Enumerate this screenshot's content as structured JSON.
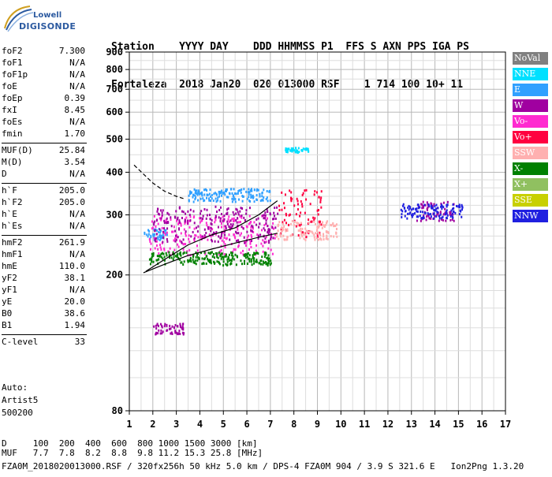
{
  "logo": {
    "brand": "Lowell",
    "name": "DIGISONDE"
  },
  "header": {
    "labels": "Station    YYYY DAY    DDD HHMMSS P1  FFS S AXN PPS IGA PS",
    "values": "Fortaleza  2018 Jan20  020 013000 RSF    1 714 100 10+ 11"
  },
  "params": [
    {
      "k": "foF2",
      "v": "7.300"
    },
    {
      "k": "foF1",
      "v": "N/A"
    },
    {
      "k": "foF1p",
      "v": "N/A"
    },
    {
      "k": "foE",
      "v": "N/A"
    },
    {
      "k": "foEp",
      "v": "0.39"
    },
    {
      "k": "fxI",
      "v": "8.45"
    },
    {
      "k": "foEs",
      "v": "N/A"
    },
    {
      "k": "fmin",
      "v": "1.70"
    },
    {
      "k": "MUF(D)",
      "v": "25.84"
    },
    {
      "k": "M(D)",
      "v": "3.54"
    },
    {
      "k": "D",
      "v": "N/A"
    },
    {
      "k": "h`F",
      "v": "205.0"
    },
    {
      "k": "h`F2",
      "v": "205.0"
    },
    {
      "k": "h`E",
      "v": "N/A"
    },
    {
      "k": "h`Es",
      "v": "N/A"
    },
    {
      "k": "hmF2",
      "v": "261.9"
    },
    {
      "k": "hmF1",
      "v": "N/A"
    },
    {
      "k": "hmE",
      "v": "110.0"
    },
    {
      "k": "yF2",
      "v": "38.1"
    },
    {
      "k": "yF1",
      "v": "N/A"
    },
    {
      "k": "yE",
      "v": "20.0"
    },
    {
      "k": "B0",
      "v": "38.6"
    },
    {
      "k": "B1",
      "v": "1.94"
    },
    {
      "k": "C-level",
      "v": "33"
    }
  ],
  "auto": {
    "line1": "Auto:",
    "line2": "Artist5",
    "line3": "500200"
  },
  "legend": [
    {
      "label": "NoVal",
      "color": "#808080"
    },
    {
      "label": "NNE",
      "color": "#00e0ff"
    },
    {
      "label": "E",
      "color": "#30a0ff"
    },
    {
      "label": "W",
      "color": "#a000a0"
    },
    {
      "label": "Vo-",
      "color": "#ff2ad0"
    },
    {
      "label": "Vo+",
      "color": "#ff0040"
    },
    {
      "label": "SSW",
      "color": "#ffb0b0"
    },
    {
      "label": "X-",
      "color": "#008000"
    },
    {
      "label": "X+",
      "color": "#90c060"
    },
    {
      "label": "SSE",
      "color": "#c8d000"
    },
    {
      "label": "NNW",
      "color": "#2020e0"
    }
  ],
  "footer": {
    "row1": "D     100  200  400  600  800 1000 1500 3000 [km]",
    "row2": "MUF   7.7  7.8  8.2  8.8  9.8 11.2 15.3 25.8 [MHz]",
    "row3": "FZA0M_2018020013000.RSF / 320fx256h 50 kHz 5.0 km / DPS-4 FZA0M 904 / 3.9 S 321.6 E   Ion2Png 1.3.20"
  },
  "chart_data": {
    "type": "scatter",
    "title": "",
    "xlabel": "",
    "ylabel": "",
    "xlim": [
      1,
      17
    ],
    "ylim": [
      80,
      900
    ],
    "x_ticks": [
      1,
      2,
      3,
      4,
      5,
      6,
      7,
      8,
      9,
      10,
      11,
      12,
      13,
      14,
      15,
      16,
      17
    ],
    "y_ticks": [
      80,
      200,
      300,
      400,
      500,
      600,
      700,
      800,
      900
    ],
    "grid": true,
    "y_scale": "log",
    "traces": [
      {
        "name": "",
        "style": "solid",
        "points": [
          [
            1.6,
            203
          ],
          [
            2.5,
            215
          ],
          [
            3.5,
            228
          ],
          [
            4.5,
            238
          ],
          [
            5.5,
            248
          ],
          [
            6.5,
            258
          ],
          [
            7.3,
            265
          ]
        ]
      },
      {
        "name": "",
        "style": "solid",
        "points": [
          [
            1.7,
            205
          ],
          [
            2.5,
            222
          ],
          [
            3.5,
            245
          ],
          [
            4.5,
            262
          ],
          [
            5.5,
            275
          ],
          [
            6.5,
            300
          ],
          [
            7.3,
            330
          ]
        ]
      },
      {
        "name": "",
        "style": "dashed",
        "points": [
          [
            1.2,
            420
          ],
          [
            1.6,
            395
          ],
          [
            2.0,
            372
          ],
          [
            2.5,
            352
          ],
          [
            3.0,
            340
          ],
          [
            3.3,
            335
          ]
        ]
      }
    ],
    "echo_clusters": [
      {
        "color": "#30a0ff",
        "x": [
          1.6,
          2.6
        ],
        "y": [
          255,
          275
        ]
      },
      {
        "color": "#ff2ad0",
        "x": [
          1.8,
          7.2
        ],
        "y": [
          230,
          300
        ]
      },
      {
        "color": "#a000a0",
        "x": [
          2.0,
          7.3
        ],
        "y": [
          250,
          320
        ]
      },
      {
        "color": "#ff0040",
        "x": [
          7.3,
          9.2
        ],
        "y": [
          260,
          360
        ]
      },
      {
        "color": "#ffb0b0",
        "x": [
          7.2,
          9.8
        ],
        "y": [
          255,
          290
        ]
      },
      {
        "color": "#a000a0",
        "x": [
          13.2,
          14.8
        ],
        "y": [
          290,
          330
        ]
      },
      {
        "color": "#2020e0",
        "x": [
          12.5,
          15.2
        ],
        "y": [
          295,
          325
        ]
      },
      {
        "color": "#00e0ff",
        "x": [
          7.6,
          8.6
        ],
        "y": [
          460,
          475
        ]
      },
      {
        "color": "#30a0ff",
        "x": [
          3.5,
          7.0
        ],
        "y": [
          330,
          360
        ]
      },
      {
        "color": "#a000a0",
        "x": [
          2.0,
          3.3
        ],
        "y": [
          135,
          145
        ]
      },
      {
        "color": "#008000",
        "x": [
          1.8,
          7.0
        ],
        "y": [
          215,
          235
        ]
      }
    ]
  }
}
